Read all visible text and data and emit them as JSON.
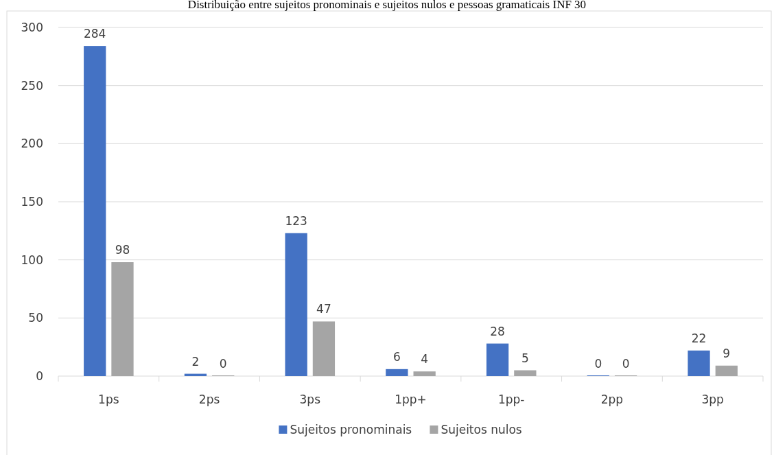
{
  "chart_data": {
    "type": "bar",
    "title": "Distribuição entre sujeitos pronominais e sujeitos nulos e pessoas gramaticais INF 30",
    "categories": [
      "1ps",
      "2ps",
      "3ps",
      "1pp+",
      "1pp-",
      "2pp",
      "3pp"
    ],
    "series": [
      {
        "name": "Sujeitos pronominais",
        "color": "#4472c4",
        "values": [
          284,
          2,
          123,
          6,
          28,
          0,
          22
        ]
      },
      {
        "name": "Sujeitos nulos",
        "color": "#a5a5a5",
        "values": [
          98,
          0,
          47,
          4,
          5,
          0,
          9
        ]
      }
    ],
    "ylim": [
      0,
      300
    ],
    "yticks": [
      0,
      50,
      100,
      150,
      200,
      250,
      300
    ],
    "grid": "y",
    "legend": "bottom",
    "data_labels": true
  }
}
